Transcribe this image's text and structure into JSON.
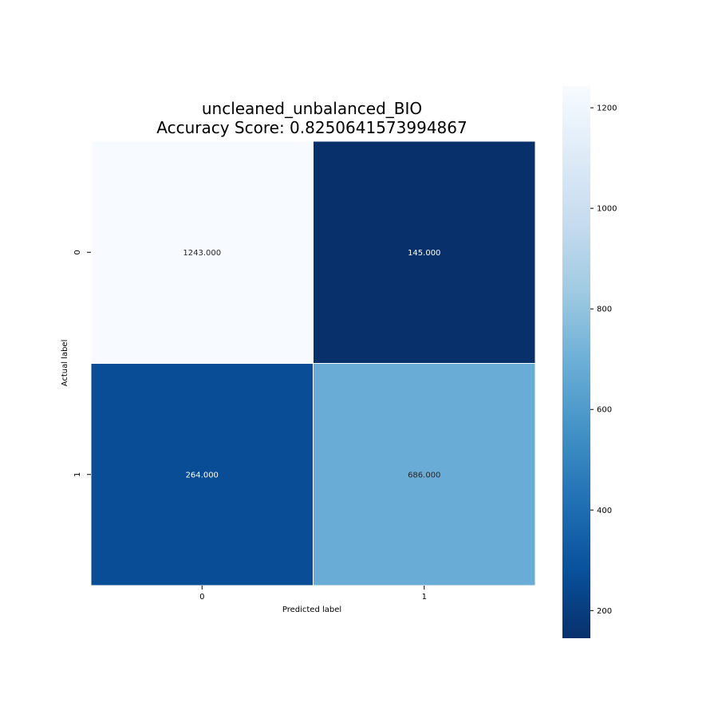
{
  "chart_data": {
    "type": "heatmap",
    "title_lines": [
      "uncleaned_unbalanced_BIO",
      "Accuracy Score: 0.8250641573994867"
    ],
    "xlabel": "Predicted label",
    "ylabel": "Actual label",
    "x_categories": [
      "0",
      "1"
    ],
    "y_categories": [
      "0",
      "1"
    ],
    "matrix": [
      [
        1243,
        145
      ],
      [
        264,
        686
      ]
    ],
    "annotations": [
      [
        "1243.000",
        "145.000"
      ],
      [
        "264.000",
        "686.000"
      ]
    ],
    "colormap": "Blues_r",
    "colorbar": {
      "range": [
        145,
        1243
      ],
      "ticks": [
        200,
        400,
        600,
        800,
        1000,
        1200
      ],
      "tick_labels": [
        "200",
        "400",
        "600",
        "800",
        "1000",
        "1200"
      ],
      "colors": [
        "#08306b",
        "#08519c",
        "#2171b5",
        "#4292c6",
        "#6baed6",
        "#9ecae1",
        "#c6dbef",
        "#deebf7",
        "#f7fbff"
      ]
    }
  }
}
